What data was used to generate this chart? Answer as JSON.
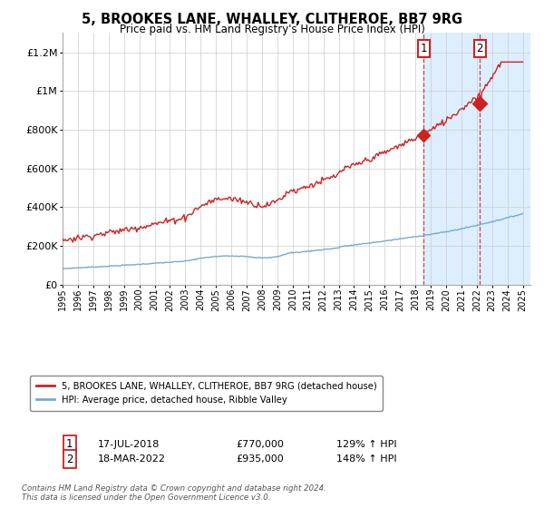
{
  "title": "5, BROOKES LANE, WHALLEY, CLITHEROE, BB7 9RG",
  "subtitle": "Price paid vs. HM Land Registry's House Price Index (HPI)",
  "legend_line1": "5, BROOKES LANE, WHALLEY, CLITHEROE, BB7 9RG (detached house)",
  "legend_line2": "HPI: Average price, detached house, Ribble Valley",
  "annotation1": {
    "label": "1",
    "date": "17-JUL-2018",
    "price": "£770,000",
    "hpi": "129% ↑ HPI",
    "x_year": 2018.54,
    "y": 770000
  },
  "annotation2": {
    "label": "2",
    "date": "18-MAR-2022",
    "price": "£935,000",
    "hpi": "148% ↑ HPI",
    "x_year": 2022.21,
    "y": 935000
  },
  "footer": "Contains HM Land Registry data © Crown copyright and database right 2024.\nThis data is licensed under the Open Government Licence v3.0.",
  "red_color": "#cc2222",
  "blue_color": "#77aacc",
  "shade_color": "#ddeeff",
  "ylim": [
    0,
    1300000
  ],
  "xlim_start": 1995.0,
  "xlim_end": 2025.5,
  "shade_start": 2018.54,
  "shade_end": 2025.5,
  "dashed_x1": 2018.54,
  "dashed_x2": 2022.21,
  "yticks": [
    0,
    200000,
    400000,
    600000,
    800000,
    1000000,
    1200000
  ],
  "ytick_labels": [
    "£0",
    "£200K",
    "£400K",
    "£600K",
    "£800K",
    "£1M",
    "£1.2M"
  ]
}
